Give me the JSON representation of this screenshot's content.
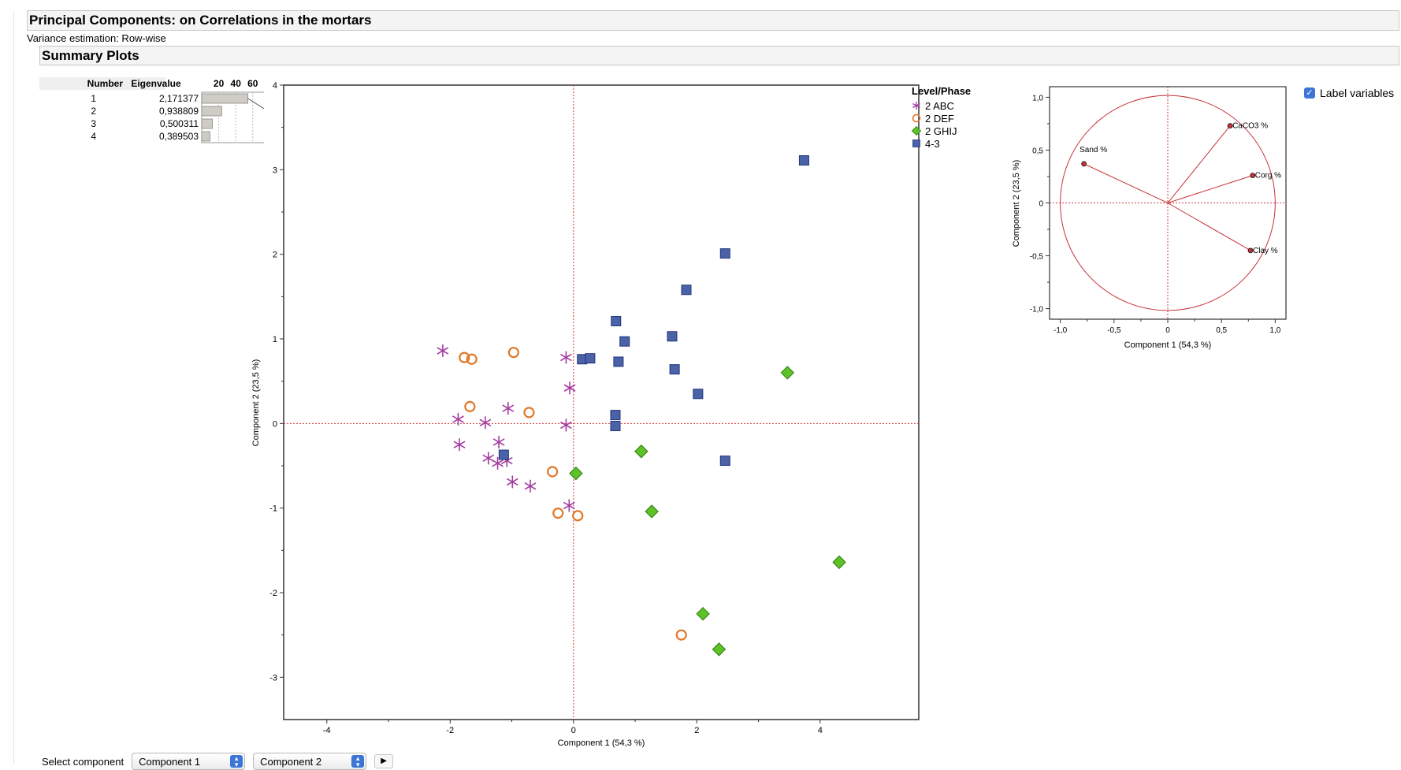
{
  "header": {
    "title": "Principal Components: on Correlations in the mortars",
    "variance": "Variance estimation: Row-wise",
    "summary": "Summary Plots"
  },
  "eigen_table": {
    "col_number": "Number",
    "col_eigenvalue": "Eigenvalue",
    "pct_ticks": [
      "20",
      "40",
      "60",
      "80"
    ],
    "rows": [
      {
        "number": "1",
        "eigenvalue": "2,171377",
        "percent": 54.3
      },
      {
        "number": "2",
        "eigenvalue": "0,938809",
        "percent": 23.5
      },
      {
        "number": "3",
        "eigenvalue": "0,500311",
        "percent": 12.5
      },
      {
        "number": "4",
        "eigenvalue": "0,389503",
        "percent": 9.7
      }
    ]
  },
  "legend": {
    "title": "Level/Phase",
    "items": [
      {
        "label": "2 ABC",
        "color": "#a23ca0",
        "marker": "asterisk"
      },
      {
        "label": "2 DEF",
        "color": "#e0782a",
        "marker": "circle"
      },
      {
        "label": "2 GHIJ",
        "color": "#5cc226",
        "marker": "diamond"
      },
      {
        "label": "4-3",
        "color": "#4a62a8",
        "marker": "square"
      }
    ]
  },
  "label_variables": "Label variables",
  "select": {
    "label": "Select component",
    "first": "Component 1",
    "second": "Component 2"
  },
  "chart_data": [
    {
      "type": "scatter",
      "title": "",
      "xlabel": "Component 1  (54,3 %)",
      "ylabel": "Component 2  (23,5 %)",
      "xlim": [
        -4.7,
        5.6
      ],
      "ylim": [
        -3.5,
        4.0
      ],
      "xticks": [
        -4,
        -2,
        0,
        2,
        4
      ],
      "yticks": [
        -3,
        -2,
        -1,
        0,
        1,
        2,
        3,
        4
      ],
      "xtick_labels": [
        "-4",
        "-2",
        "0",
        "2",
        "4"
      ],
      "ytick_labels": [
        "-3",
        "-2",
        "-1",
        "0",
        "1",
        "2",
        "3",
        "4"
      ],
      "grid": false,
      "reference_lines": {
        "x": 0,
        "y": 0
      },
      "legend_position": "right",
      "series": [
        {
          "name": "2 ABC",
          "color": "#a23ca0",
          "marker": "asterisk",
          "points": [
            [
              -2.12,
              0.86
            ],
            [
              -1.87,
              0.05
            ],
            [
              -1.85,
              -0.25
            ],
            [
              -1.43,
              0.01
            ],
            [
              -1.38,
              -0.41
            ],
            [
              -1.23,
              -0.47
            ],
            [
              -1.21,
              -0.22
            ],
            [
              -1.08,
              -0.44
            ],
            [
              -1.06,
              0.18
            ],
            [
              -0.99,
              -0.69
            ],
            [
              -0.7,
              -0.74
            ],
            [
              -0.12,
              0.78
            ],
            [
              -0.06,
              0.42
            ],
            [
              -0.12,
              -0.02
            ],
            [
              -0.07,
              -0.97
            ]
          ]
        },
        {
          "name": "2 DEF",
          "color": "#e0782a",
          "marker": "circle",
          "points": [
            [
              -1.77,
              0.78
            ],
            [
              -1.65,
              0.76
            ],
            [
              -1.68,
              0.2
            ],
            [
              -0.97,
              0.84
            ],
            [
              -0.72,
              0.13
            ],
            [
              -0.34,
              -0.57
            ],
            [
              -0.25,
              -1.06
            ],
            [
              0.07,
              -1.09
            ],
            [
              1.75,
              -2.5
            ]
          ]
        },
        {
          "name": "2 GHIJ",
          "color": "#5cc226",
          "marker": "diamond",
          "points": [
            [
              3.47,
              0.6
            ],
            [
              1.1,
              -0.33
            ],
            [
              0.04,
              -0.59
            ],
            [
              1.27,
              -1.04
            ],
            [
              4.31,
              -1.64
            ],
            [
              2.1,
              -2.25
            ],
            [
              2.36,
              -2.67
            ]
          ]
        },
        {
          "name": "4-3",
          "color": "#4a62a8",
          "marker": "square",
          "points": [
            [
              3.74,
              3.11
            ],
            [
              2.46,
              2.01
            ],
            [
              1.83,
              1.58
            ],
            [
              0.69,
              1.21
            ],
            [
              0.83,
              0.97
            ],
            [
              1.6,
              1.03
            ],
            [
              0.73,
              0.73
            ],
            [
              0.14,
              0.76
            ],
            [
              0.27,
              0.77
            ],
            [
              1.64,
              0.64
            ],
            [
              2.02,
              0.35
            ],
            [
              0.68,
              0.1
            ],
            [
              0.68,
              -0.03
            ],
            [
              2.46,
              -0.44
            ],
            [
              -1.13,
              -0.37
            ]
          ]
        }
      ]
    },
    {
      "type": "scatter",
      "title": "",
      "xlabel": "Component 1  (54,3 %)",
      "ylabel": "Component 2  (23,5 %)",
      "xlim": [
        -1.1,
        1.1
      ],
      "ylim": [
        -1.1,
        1.1
      ],
      "xticks": [
        -1.0,
        -0.5,
        0,
        0.5,
        1.0
      ],
      "yticks": [
        -1.0,
        -0.5,
        0,
        0.5,
        1.0
      ],
      "xtick_labels": [
        "-1,0",
        "-0,5",
        "0",
        "0,5",
        "1,0"
      ],
      "ytick_labels": [
        "-1,0",
        "-0,5",
        "0",
        "0,5",
        "1,0"
      ],
      "grid": false,
      "reference_lines": {
        "x": 0,
        "y": 0
      },
      "unit_circle": true,
      "loadings": [
        {
          "label": "Sand %",
          "x": -0.78,
          "y": 0.37
        },
        {
          "label": "CaCO3 %",
          "x": 0.58,
          "y": 0.73
        },
        {
          "label": "Corg %",
          "x": 0.79,
          "y": 0.26
        },
        {
          "label": "Clay %",
          "x": 0.77,
          "y": -0.45
        }
      ]
    }
  ]
}
